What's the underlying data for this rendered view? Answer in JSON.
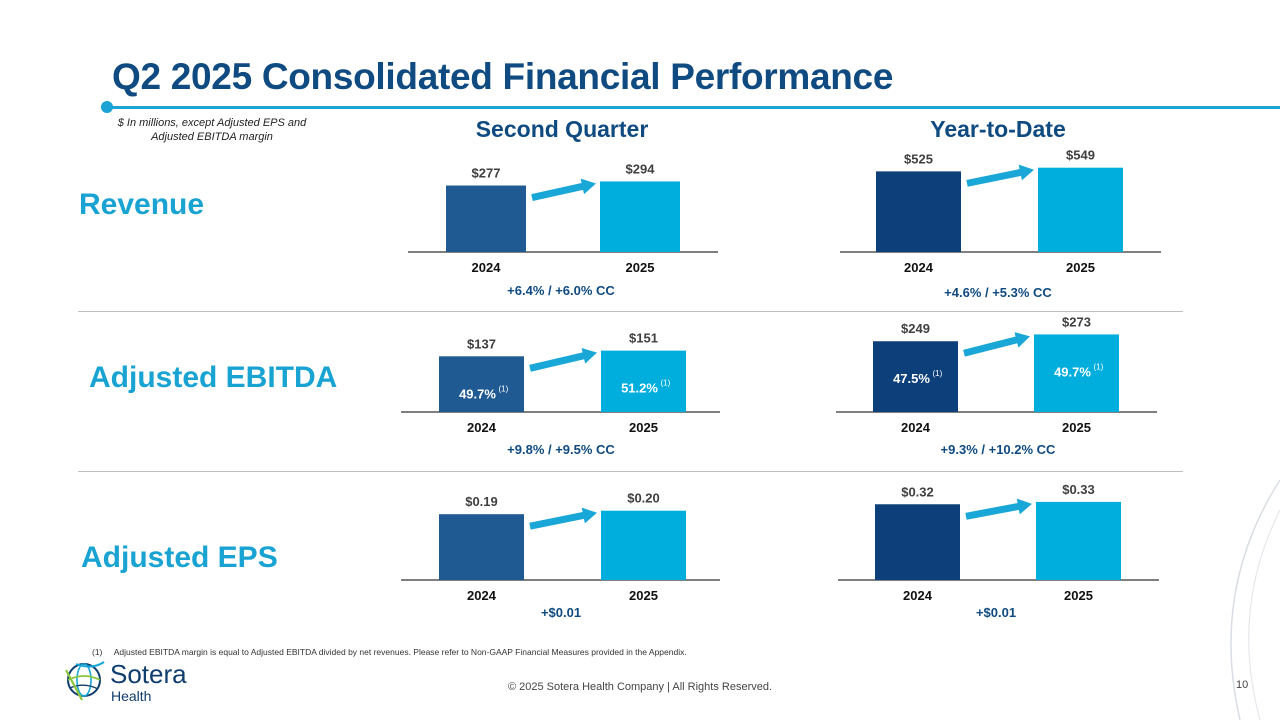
{
  "title": "Q2 2025 Consolidated Financial Performance",
  "units_note": "$ In millions, except Adjusted EPS and Adjusted EBITDA margin",
  "columns": {
    "quarter": "Second Quarter",
    "ytd": "Year-to-Date"
  },
  "rows": {
    "revenue": "Revenue",
    "ebitda": "Adjusted EBITDA",
    "eps": "Adjusted EPS"
  },
  "colors": {
    "dark_quarter": "#1f5a93",
    "dark_ytd": "#0d3f7a",
    "light": "#00aede",
    "arrow": "#19a7d8",
    "title": "#0f4a80"
  },
  "chart_data": [
    {
      "id": "rev_q",
      "type": "bar",
      "metric": "Revenue",
      "period": "Second Quarter",
      "categories": [
        "2024",
        "2025"
      ],
      "values": [
        277,
        294
      ],
      "value_labels": [
        "$277",
        "$294"
      ],
      "ylim": [
        0,
        300
      ],
      "growth_text": "+6.4% / +6.0% CC"
    },
    {
      "id": "rev_y",
      "type": "bar",
      "metric": "Revenue",
      "period": "Year-to-Date",
      "categories": [
        "2024",
        "2025"
      ],
      "values": [
        525,
        549
      ],
      "value_labels": [
        "$525",
        "$549"
      ],
      "ylim": [
        0,
        560
      ],
      "growth_text": "+4.6% / +5.3% CC"
    },
    {
      "id": "ebitda_q",
      "type": "bar",
      "metric": "Adjusted EBITDA",
      "period": "Second Quarter",
      "categories": [
        "2024",
        "2025"
      ],
      "values": [
        137,
        151
      ],
      "value_labels": [
        "$137",
        "$151"
      ],
      "ylim": [
        0,
        155
      ],
      "margins": [
        "49.7%",
        "51.2%"
      ],
      "margin_footnote": "(1)",
      "growth_text": "+9.8% / +9.5% CC"
    },
    {
      "id": "ebitda_y",
      "type": "bar",
      "metric": "Adjusted EBITDA",
      "period": "Year-to-Date",
      "categories": [
        "2024",
        "2025"
      ],
      "values": [
        249,
        273
      ],
      "value_labels": [
        "$249",
        "$273"
      ],
      "ylim": [
        0,
        278
      ],
      "margins": [
        "47.5%",
        "49.7%"
      ],
      "margin_footnote": "(1)",
      "growth_text": "+9.3% / +10.2% CC"
    },
    {
      "id": "eps_q",
      "type": "bar",
      "metric": "Adjusted EPS",
      "period": "Second Quarter",
      "categories": [
        "2024",
        "2025"
      ],
      "values": [
        0.19,
        0.2
      ],
      "value_labels": [
        "$0.19",
        "$0.20"
      ],
      "ylim": [
        0,
        0.205
      ],
      "growth_text": "+$0.01"
    },
    {
      "id": "eps_y",
      "type": "bar",
      "metric": "Adjusted EPS",
      "period": "Year-to-Date",
      "categories": [
        "2024",
        "2025"
      ],
      "values": [
        0.32,
        0.33
      ],
      "value_labels": [
        "$0.32",
        "$0.33"
      ],
      "ylim": [
        0,
        0.338
      ],
      "growth_text": "+$0.01"
    }
  ],
  "footnote": {
    "marker": "(1)",
    "text": "Adjusted EBITDA margin is equal to Adjusted EBITDA divided by net revenues. Please refer to Non-GAAP Financial Measures provided in the Appendix."
  },
  "footer": {
    "copyright": "© 2025 Sotera Health Company |  All Rights Reserved.",
    "page_number": "10",
    "logo_name": "Sotera",
    "logo_sub": "Health",
    "logo_icon": "sotera-globe-icon"
  }
}
